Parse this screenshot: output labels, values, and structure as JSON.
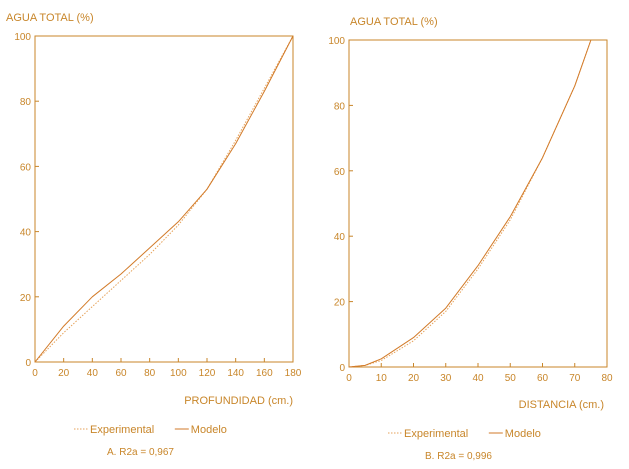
{
  "colors": {
    "ink": "#c8862a",
    "experimental": "#e6a25a",
    "modelo": "#d27a28"
  },
  "chart_data": [
    {
      "type": "line",
      "title": "AGUA TOTAL (%)",
      "xlabel": "PROFUNDIDAD (cm.)",
      "ylabel": "",
      "xlim": [
        0,
        180
      ],
      "ylim": [
        0,
        100
      ],
      "xticks": [
        "0",
        "20",
        "40",
        "60",
        "80",
        "100",
        "120",
        "140",
        "160",
        "180"
      ],
      "yticks": [
        "0",
        "20",
        "40",
        "60",
        "80",
        "100"
      ],
      "legend": [
        "Experimental",
        "Modelo"
      ],
      "caption": "A.   R2a = 0,967",
      "series": [
        {
          "name": "Experimental",
          "style": "dotted",
          "x": [
            0,
            20,
            40,
            60,
            80,
            100,
            120,
            140,
            160,
            180
          ],
          "y": [
            0,
            9,
            17,
            25,
            33,
            42,
            53,
            68,
            84,
            100
          ]
        },
        {
          "name": "Modelo",
          "style": "solid",
          "x": [
            0,
            20,
            40,
            60,
            80,
            100,
            120,
            140,
            160,
            180
          ],
          "y": [
            0,
            11,
            20,
            27,
            35,
            43,
            53,
            67,
            83,
            100
          ]
        }
      ]
    },
    {
      "type": "line",
      "title": "AGUA TOTAL (%)",
      "xlabel": "DISTANCIA (cm.)",
      "ylabel": "",
      "xlim": [
        0,
        80
      ],
      "ylim": [
        0,
        100
      ],
      "xticks": [
        "0",
        "10",
        "20",
        "30",
        "40",
        "50",
        "60",
        "70",
        "80"
      ],
      "yticks": [
        "0",
        "20",
        "40",
        "60",
        "80",
        "100"
      ],
      "legend": [
        "Experimental",
        "Modelo"
      ],
      "caption": "B.   R2a = 0,996",
      "series": [
        {
          "name": "Experimental",
          "style": "dotted",
          "x": [
            0,
            5,
            10,
            20,
            30,
            40,
            50,
            60,
            70,
            75
          ],
          "y": [
            0,
            0.5,
            2,
            8,
            17,
            30,
            45,
            64,
            86,
            100
          ]
        },
        {
          "name": "Modelo",
          "style": "solid",
          "x": [
            0,
            5,
            10,
            20,
            30,
            40,
            50,
            60,
            70,
            75
          ],
          "y": [
            0,
            0.5,
            2.5,
            9,
            18,
            31,
            46,
            64,
            86,
            100
          ]
        }
      ]
    }
  ]
}
